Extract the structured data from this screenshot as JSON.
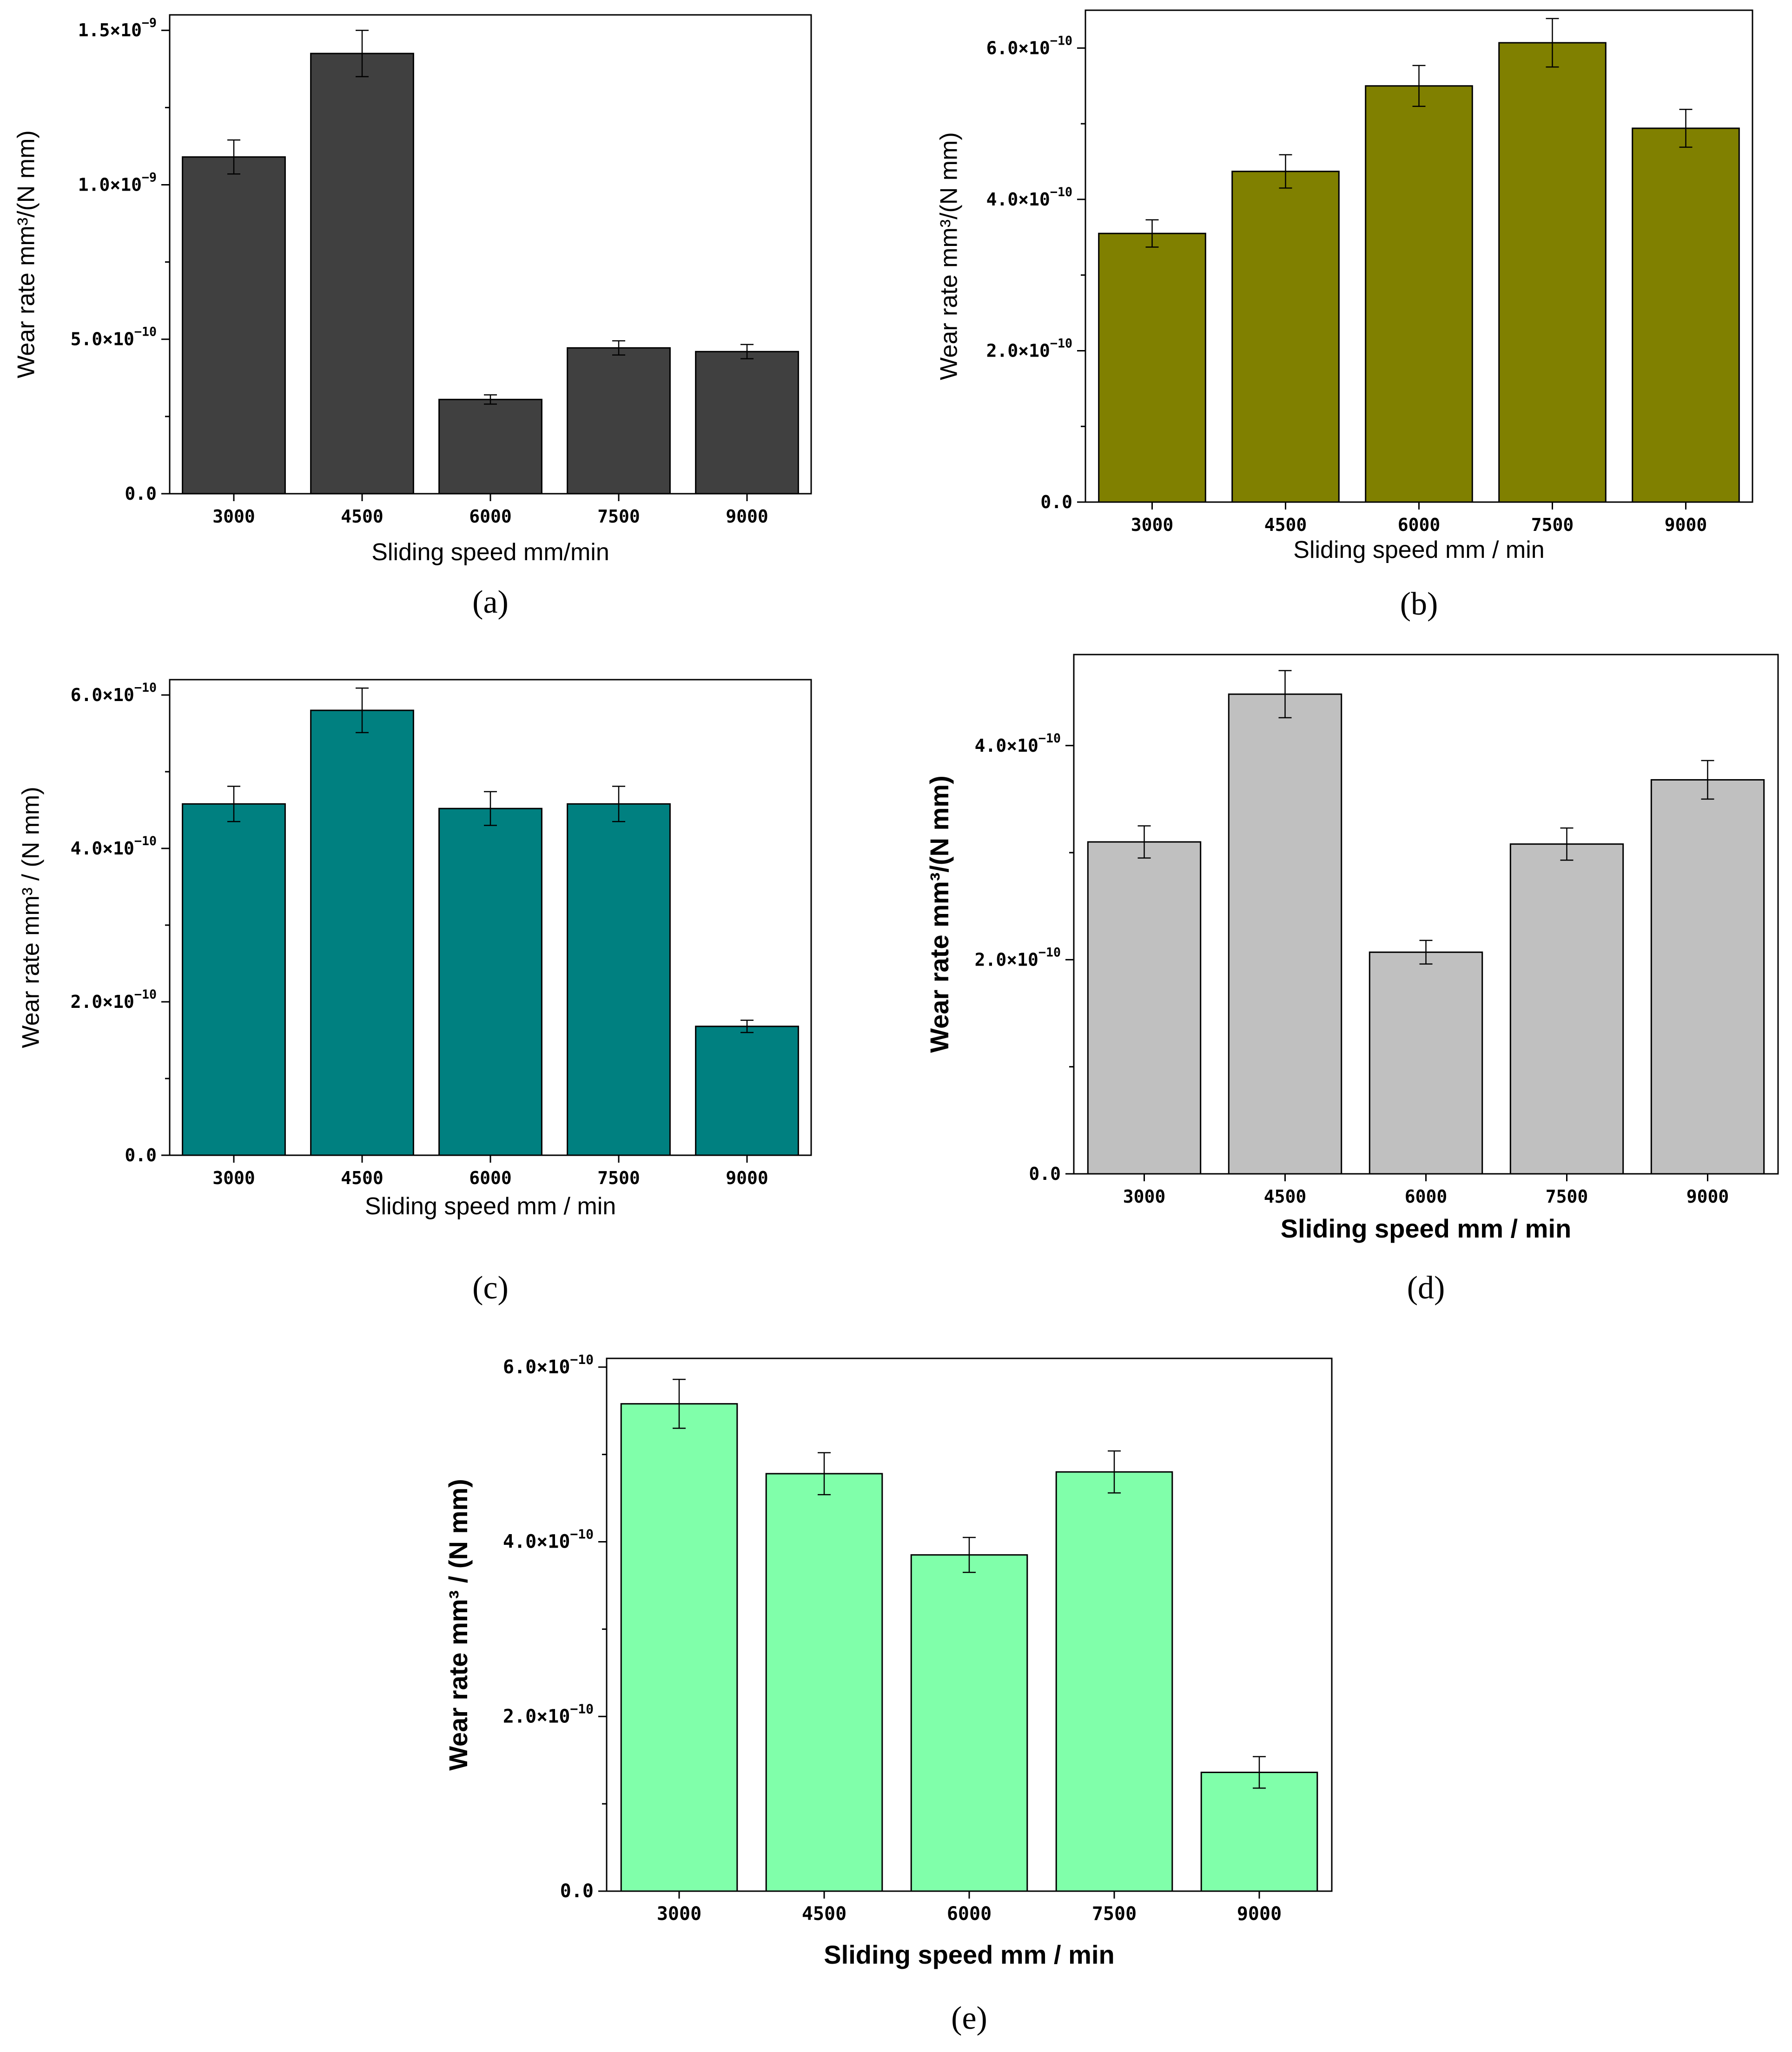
{
  "figure": {
    "panel_labels": [
      "(a)",
      "(b)",
      "(c)",
      "(d)",
      "(e)"
    ]
  },
  "chart_data": [
    {
      "id": "a",
      "type": "bar",
      "panel_label": "(a)",
      "bar_color": "#404040",
      "title": "",
      "xlabel": "Sliding speed  mm/min",
      "ylabel": "Wear rate  mm³/(N mm)",
      "categories": [
        "3000",
        "4500",
        "6000",
        "7500",
        "9000"
      ],
      "values": [
        1.09e-09,
        1.425e-09,
        3.05e-10,
        4.72e-10,
        4.6e-10
      ],
      "errors": [
        5.5e-11,
        7.5e-11,
        1.5e-11,
        2.3e-11,
        2.3e-11
      ],
      "ylim": [
        0,
        1.55e-09
      ],
      "yticks": [
        {
          "value": 0,
          "mantissa": "0.0",
          "exponent": ""
        },
        {
          "value": 5e-10,
          "mantissa": "5.0×10",
          "exponent": "−10"
        },
        {
          "value": 1e-09,
          "mantissa": "1.0×10",
          "exponent": "−9"
        },
        {
          "value": 1.5e-09,
          "mantissa": "1.5×10",
          "exponent": "−9"
        }
      ]
    },
    {
      "id": "b",
      "type": "bar",
      "panel_label": "(b)",
      "bar_color": "#808000",
      "title": "",
      "xlabel": "Sliding speed  mm / min",
      "ylabel": "Wear rate mm³/(N mm)",
      "categories": [
        "3000",
        "4500",
        "6000",
        "7500",
        "9000"
      ],
      "values": [
        3.55e-10,
        4.37e-10,
        5.5e-10,
        6.07e-10,
        4.94e-10
      ],
      "errors": [
        1.8e-11,
        2.2e-11,
        2.7e-11,
        3.2e-11,
        2.5e-11
      ],
      "ylim": [
        0,
        6.5e-10
      ],
      "yticks": [
        {
          "value": 0,
          "mantissa": "0.0",
          "exponent": ""
        },
        {
          "value": 2e-10,
          "mantissa": "2.0×10",
          "exponent": "−10"
        },
        {
          "value": 4e-10,
          "mantissa": "4.0×10",
          "exponent": "−10"
        },
        {
          "value": 6e-10,
          "mantissa": "6.0×10",
          "exponent": "−10"
        }
      ]
    },
    {
      "id": "c",
      "type": "bar",
      "panel_label": "(c)",
      "bar_color": "#008080",
      "title": "",
      "xlabel": "Sliding speed mm / min",
      "ylabel": "Wear rate mm³ / (N mm)",
      "categories": [
        "3000",
        "4500",
        "6000",
        "7500",
        "9000"
      ],
      "values": [
        4.58e-10,
        5.8e-10,
        4.52e-10,
        4.58e-10,
        1.68e-10
      ],
      "errors": [
        2.3e-11,
        2.9e-11,
        2.2e-11,
        2.3e-11,
        8e-12
      ],
      "ylim": [
        0,
        6.2e-10
      ],
      "yticks": [
        {
          "value": 0,
          "mantissa": "0.0",
          "exponent": ""
        },
        {
          "value": 2e-10,
          "mantissa": "2.0×10",
          "exponent": "−10"
        },
        {
          "value": 4e-10,
          "mantissa": "4.0×10",
          "exponent": "−10"
        },
        {
          "value": 6e-10,
          "mantissa": "6.0×10",
          "exponent": "−10"
        }
      ]
    },
    {
      "id": "d",
      "type": "bar",
      "panel_label": "(d)",
      "bar_color": "#c0c0c0",
      "title": "",
      "xlabel": "Sliding speed  mm / min",
      "ylabel": "Wear rate mm³/(N mm)",
      "categories": [
        "3000",
        "4500",
        "6000",
        "7500",
        "9000"
      ],
      "values": [
        3.1e-10,
        4.48e-10,
        2.07e-10,
        3.08e-10,
        3.68e-10
      ],
      "errors": [
        1.5e-11,
        2.2e-11,
        1.1e-11,
        1.5e-11,
        1.8e-11
      ],
      "ylim": [
        0,
        4.85e-10
      ],
      "yticks": [
        {
          "value": 0,
          "mantissa": "0.0",
          "exponent": ""
        },
        {
          "value": 2e-10,
          "mantissa": "2.0×10",
          "exponent": "−10"
        },
        {
          "value": 4e-10,
          "mantissa": "4.0×10",
          "exponent": "−10"
        }
      ]
    },
    {
      "id": "e",
      "type": "bar",
      "panel_label": "(e)",
      "bar_color": "#80ffaa",
      "title": "",
      "xlabel": "Sliding speed  mm / min",
      "ylabel": "Wear rate  mm³ / (N mm)",
      "categories": [
        "3000",
        "4500",
        "6000",
        "7500",
        "9000"
      ],
      "values": [
        5.58e-10,
        4.78e-10,
        3.85e-10,
        4.8e-10,
        1.36e-10
      ],
      "errors": [
        2.8e-11,
        2.4e-11,
        2e-11,
        2.4e-11,
        1.8e-11
      ],
      "ylim": [
        0,
        6.1e-10
      ],
      "yticks": [
        {
          "value": 0,
          "mantissa": "0.0",
          "exponent": ""
        },
        {
          "value": 2e-10,
          "mantissa": "2.0×10",
          "exponent": "−10"
        },
        {
          "value": 4e-10,
          "mantissa": "4.0×10",
          "exponent": "−10"
        },
        {
          "value": 6e-10,
          "mantissa": "6.0×10",
          "exponent": "−10"
        }
      ]
    }
  ]
}
